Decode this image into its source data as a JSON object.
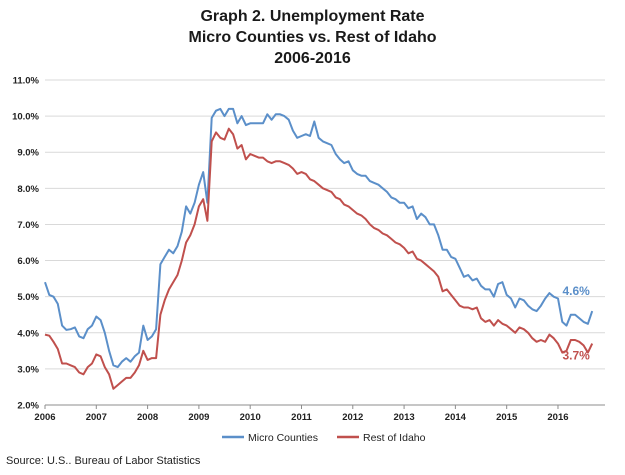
{
  "chart_data": {
    "type": "line",
    "title_lines": [
      "Graph 2. Unemployment Rate",
      "Micro Counties vs. Rest of Idaho",
      "2006-2016"
    ],
    "xlabel": "",
    "ylabel": "",
    "x_range": [
      2006,
      2016.9167
    ],
    "ylim": [
      2.0,
      11.0
    ],
    "y_ticks": [
      "2.0%",
      "3.0%",
      "4.0%",
      "5.0%",
      "6.0%",
      "7.0%",
      "8.0%",
      "9.0%",
      "10.0%",
      "11.0%"
    ],
    "x_ticks": [
      "2006",
      "2007",
      "2008",
      "2009",
      "2010",
      "2011",
      "2012",
      "2013",
      "2014",
      "2015",
      "2016"
    ],
    "grid": true,
    "legend_position": "bottom-center",
    "series": [
      {
        "name": "Micro Counties",
        "color": "#5b8fc9",
        "values": [
          5.4,
          5.05,
          5.0,
          4.8,
          4.2,
          4.08,
          4.1,
          4.15,
          3.9,
          3.85,
          4.1,
          4.2,
          4.45,
          4.35,
          4.0,
          3.5,
          3.1,
          3.05,
          3.2,
          3.3,
          3.2,
          3.35,
          3.45,
          4.2,
          3.8,
          3.9,
          4.1,
          5.9,
          6.1,
          6.3,
          6.2,
          6.4,
          6.8,
          7.5,
          7.3,
          7.6,
          8.1,
          8.45,
          7.6,
          9.95,
          10.15,
          10.2,
          10.0,
          10.2,
          10.2,
          9.8,
          10.0,
          9.75,
          9.8,
          9.8,
          9.8,
          9.8,
          10.05,
          9.9,
          10.05,
          10.05,
          10.0,
          9.9,
          9.6,
          9.4,
          9.45,
          9.5,
          9.45,
          9.85,
          9.4,
          9.3,
          9.25,
          9.2,
          8.95,
          8.8,
          8.7,
          8.75,
          8.5,
          8.4,
          8.35,
          8.35,
          8.2,
          8.15,
          8.1,
          8.0,
          7.9,
          7.75,
          7.7,
          7.6,
          7.6,
          7.45,
          7.5,
          7.15,
          7.3,
          7.2,
          7.0,
          7.0,
          6.7,
          6.3,
          6.3,
          6.1,
          6.05,
          5.8,
          5.55,
          5.6,
          5.45,
          5.5,
          5.3,
          5.2,
          5.2,
          5.0,
          5.35,
          5.4,
          5.05,
          4.95,
          4.7,
          4.95,
          4.9,
          4.75,
          4.65,
          4.6,
          4.75,
          4.95,
          5.1,
          5.0,
          4.95,
          4.3,
          4.2,
          4.5,
          4.5,
          4.4,
          4.3,
          4.25,
          4.6
        ],
        "end_label": "4.6%"
      },
      {
        "name": "Rest of Idaho",
        "color": "#c0504d",
        "values": [
          3.95,
          3.92,
          3.75,
          3.55,
          3.15,
          3.15,
          3.1,
          3.05,
          2.9,
          2.85,
          3.05,
          3.15,
          3.4,
          3.35,
          3.05,
          2.85,
          2.45,
          2.55,
          2.65,
          2.75,
          2.75,
          2.9,
          3.1,
          3.5,
          3.25,
          3.3,
          3.3,
          4.5,
          4.9,
          5.2,
          5.4,
          5.6,
          6.0,
          6.5,
          6.7,
          7.0,
          7.5,
          7.7,
          7.1,
          9.3,
          9.55,
          9.4,
          9.35,
          9.65,
          9.5,
          9.1,
          9.2,
          8.8,
          8.95,
          8.9,
          8.85,
          8.85,
          8.75,
          8.7,
          8.75,
          8.75,
          8.7,
          8.65,
          8.55,
          8.4,
          8.45,
          8.4,
          8.25,
          8.2,
          8.1,
          8.0,
          7.95,
          7.9,
          7.75,
          7.7,
          7.55,
          7.5,
          7.4,
          7.3,
          7.25,
          7.15,
          7.0,
          6.9,
          6.85,
          6.75,
          6.7,
          6.6,
          6.5,
          6.45,
          6.35,
          6.2,
          6.25,
          6.05,
          6.0,
          5.9,
          5.8,
          5.7,
          5.55,
          5.15,
          5.2,
          5.05,
          4.9,
          4.75,
          4.7,
          4.7,
          4.65,
          4.7,
          4.4,
          4.3,
          4.35,
          4.2,
          4.35,
          4.25,
          4.2,
          4.1,
          4.0,
          4.15,
          4.1,
          4.0,
          3.85,
          3.75,
          3.8,
          3.75,
          3.95,
          3.85,
          3.7,
          3.45,
          3.5,
          3.8,
          3.8,
          3.75,
          3.65,
          3.45,
          3.7
        ],
        "end_label": "3.7%"
      }
    ]
  },
  "source": "Source: U.S.. Bureau of Labor Statistics"
}
